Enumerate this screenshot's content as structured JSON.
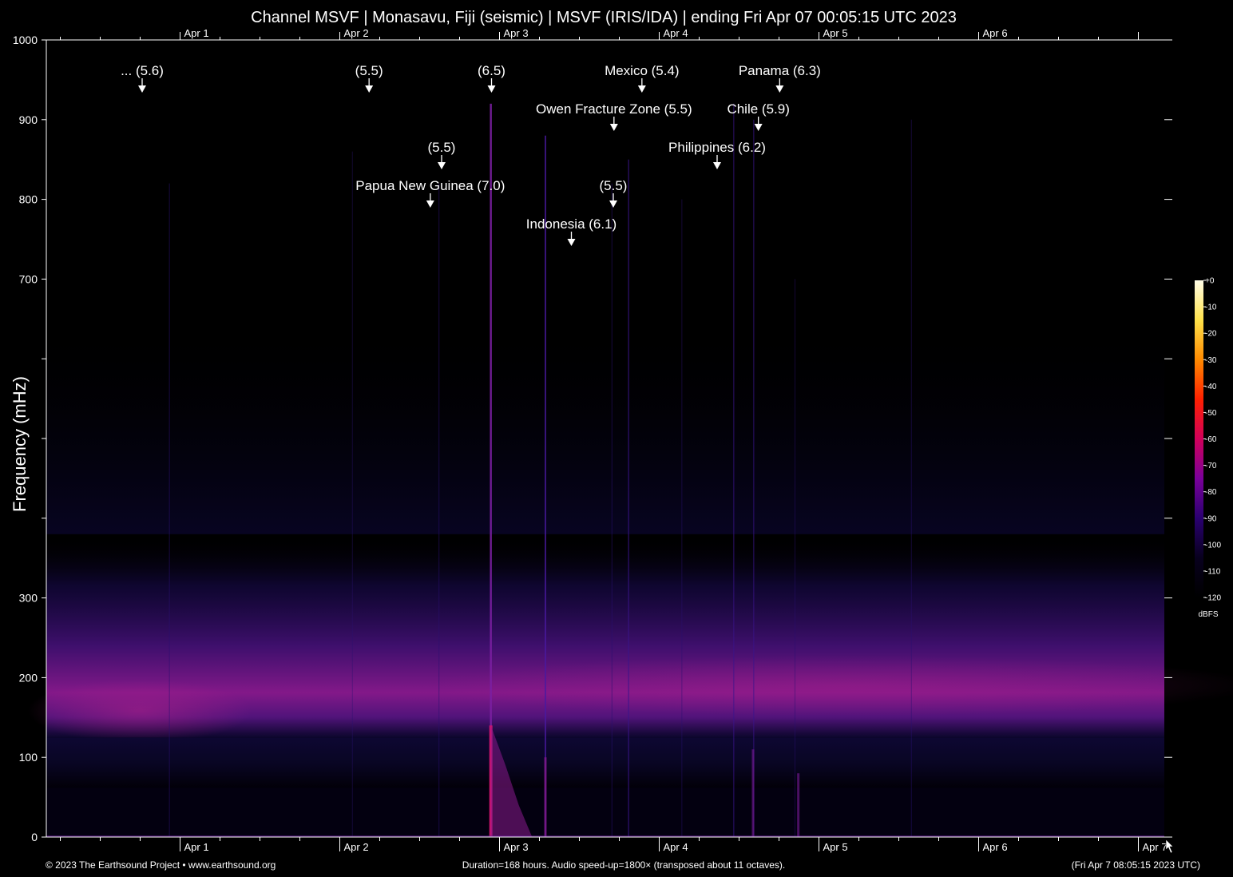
{
  "chart_data": {
    "type": "heatmap",
    "title": "Channel MSVF | Monasavu, Fiji (seismic) | MSVF (IRIS/IDA) | ending Fri Apr 07 00:05:15 UTC 2023",
    "ylabel": "Frequency (mHz)",
    "ylim": [
      0,
      1000
    ],
    "y_ticks": [
      0,
      100,
      200,
      300,
      400,
      500,
      600,
      700,
      800,
      900,
      1000
    ],
    "y_tick_labels": [
      "0",
      "100",
      "200",
      "300",
      "",
      "",
      "",
      "700",
      "800",
      "900",
      "1000"
    ],
    "x_range_hours": [
      0,
      168
    ],
    "day_labels": [
      {
        "label": "Apr 1",
        "hour": 20.1
      },
      {
        "label": "Apr 2",
        "hour": 44.1
      },
      {
        "label": "Apr 3",
        "hour": 68.1
      },
      {
        "label": "Apr 4",
        "hour": 92.1
      },
      {
        "label": "Apr 5",
        "hour": 116.1
      },
      {
        "label": "Apr 6",
        "hour": 140.1
      }
    ],
    "bottom_extra_label": {
      "label": "Apr 7",
      "hour": 164.1
    },
    "events": [
      {
        "label": "... (5.6)",
        "hour": 14.4,
        "row": 0
      },
      {
        "label": "(5.5)",
        "hour": 48.5,
        "row": 0
      },
      {
        "label": "(6.5)",
        "hour": 66.9,
        "row": 0
      },
      {
        "label": "Mexico (5.4)",
        "hour": 89.5,
        "row": 0
      },
      {
        "label": "Panama (6.3)",
        "hour": 110.2,
        "row": 0
      },
      {
        "label": "Owen Fracture Zone (5.5)",
        "hour": 85.3,
        "row": 1
      },
      {
        "label": "Chile (5.9)",
        "hour": 107.0,
        "row": 1
      },
      {
        "label": "(5.5)",
        "hour": 59.4,
        "row": 2
      },
      {
        "label": "Philippines (6.2)",
        "hour": 100.8,
        "row": 2
      },
      {
        "label": "Papua New Guinea (7.0)",
        "hour": 57.7,
        "row": 3
      },
      {
        "label": "(5.5)",
        "hour": 85.2,
        "row": 3
      },
      {
        "label": "Indonesia (6.1)",
        "hour": 78.9,
        "row": 4
      }
    ],
    "colorbar": {
      "unit": "dBFS",
      "ticks": [
        "+0",
        "-10",
        "-20",
        "-30",
        "-40",
        "-50",
        "-60",
        "-70",
        "-80",
        "-90",
        "-100",
        "-110",
        "-120"
      ],
      "colors": [
        "#fffde8",
        "#ffe24a",
        "#ff8a00",
        "#ff2000",
        "#d1005a",
        "#7a009a",
        "#2a0070",
        "#08001e",
        "#000000"
      ]
    }
  },
  "footer": {
    "left": "© 2023 The Earthsound Project • www.earthsound.org",
    "center": "Duration=168 hours. Audio speed-up=1800× (transposed about 11 octaves).",
    "right": "(Fri Apr  7 08:05:15 2023 UTC)"
  }
}
